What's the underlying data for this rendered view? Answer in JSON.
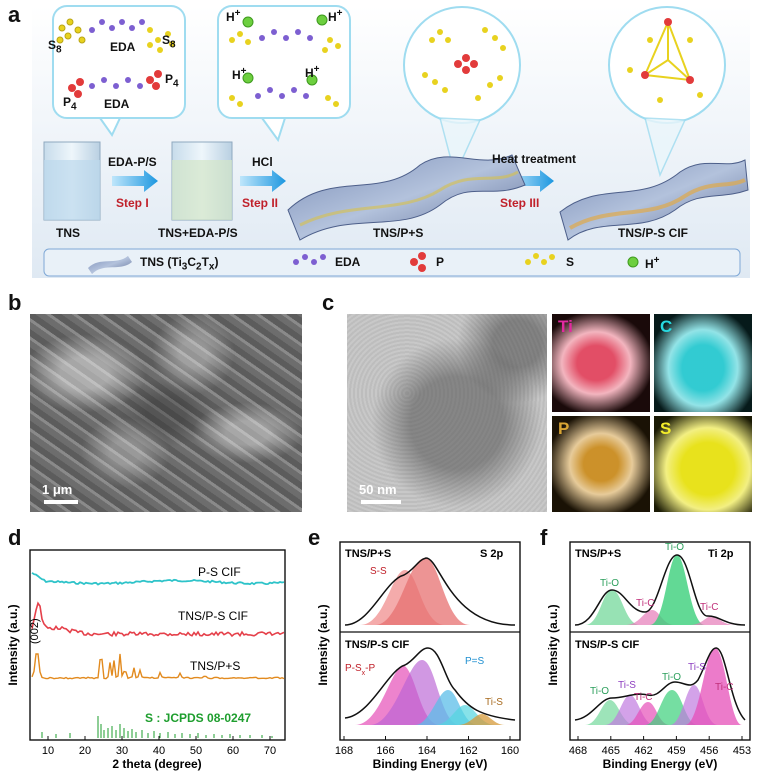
{
  "panel_a": {
    "label": "a",
    "bubble_labels": {
      "s8_left": "S",
      "s8_left_sub": "8",
      "eda_top": "EDA",
      "s8_right": "S",
      "s8_right_sub": "8",
      "p4_left": "P",
      "p4_left_sub": "4",
      "p4_right": "P",
      "p4_right_sub": "4",
      "eda_bottom": "EDA",
      "hplus": "H",
      "hplus_sup": "+"
    },
    "steps": {
      "arrow1_top": "EDA-P/S",
      "step1": "Step I",
      "arrow2_top": "HCl",
      "step2": "Step II",
      "arrow3_top": "Heat treatment",
      "step3": "Step III"
    },
    "stage_labels": [
      "TNS",
      "TNS+EDA-P/S",
      "TNS/P+S",
      "TNS/P-S CIF"
    ],
    "legend": {
      "tns": "TNS (Ti",
      "tns_sub1": "3",
      "tns_c": "C",
      "tns_sub2": "2",
      "tns_t": "T",
      "tns_sub3": "x",
      "tns_close": ")",
      "eda": "EDA",
      "p": "P",
      "s": "S",
      "h": "H",
      "h_sup": "+"
    }
  },
  "panel_b": {
    "label": "b",
    "scale": "1 μm"
  },
  "panel_c": {
    "label": "c",
    "scale": "50 nm",
    "maps": [
      "Ti",
      "C",
      "P",
      "S"
    ],
    "map_colors": [
      "#e0455e",
      "#27c8cf",
      "#c98b1e",
      "#e8e21c"
    ]
  },
  "panel_d": {
    "label": "d",
    "ylabel": "Intensity (a.u.)",
    "xlabel": "2 theta (degree)",
    "xticks": [
      "10",
      "20",
      "30",
      "40",
      "50",
      "60",
      "70"
    ],
    "curves": [
      {
        "name": "P-S CIF",
        "color": "#2ec3c9"
      },
      {
        "name": "TNS/P-S CIF",
        "color": "#e5404a"
      },
      {
        "name": "TNS/P+S",
        "color": "#e28a1e"
      }
    ],
    "peak_label": "(002)",
    "reference": {
      "name": "S : JCPDS 08-0247",
      "color": "#1e9e2e"
    }
  },
  "panel_e": {
    "label": "e",
    "ylabel": "Intensity (a.u.)",
    "xlabel": "Binding Energy (eV)",
    "xticks": [
      "168",
      "166",
      "164",
      "162",
      "160"
    ],
    "top": {
      "sample": "TNS/P+S",
      "region": "S 2p",
      "peak": "S-S"
    },
    "bottom": {
      "sample": "TNS/P-S CIF",
      "peak1": "P-S",
      "peak1_sub": "x",
      "peak1_end": "-P",
      "peak2": "P=S",
      "peak3": "Ti-S"
    }
  },
  "panel_f": {
    "label": "f",
    "ylabel": "Intensity (a.u.)",
    "xlabel": "Binding Energy (eV)",
    "xticks": [
      "468",
      "465",
      "462",
      "459",
      "456",
      "453"
    ],
    "top": {
      "sample": "TNS/P+S",
      "region": "Ti 2p",
      "peaks": [
        "Ti-O",
        "Ti-O",
        "Ti-C",
        "Ti-C"
      ]
    },
    "bottom": {
      "sample": "TNS/P-S CIF",
      "peaks": [
        "Ti-O",
        "Ti-S",
        "Ti-C",
        "Ti-O",
        "Ti-S",
        "Ti-C"
      ]
    }
  }
}
